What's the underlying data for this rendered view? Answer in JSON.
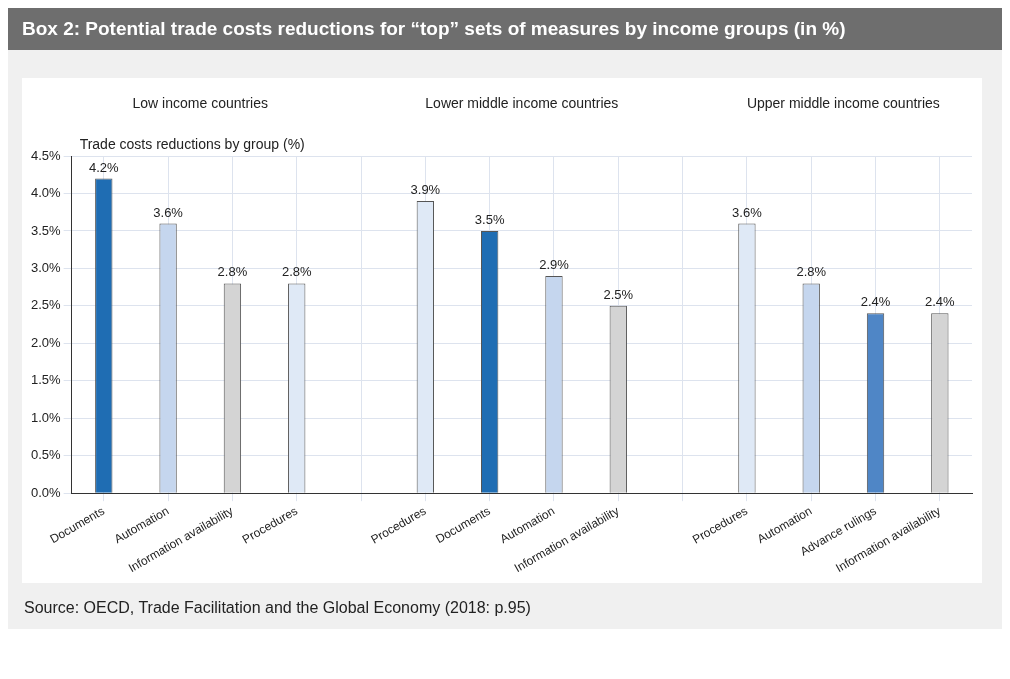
{
  "chart_data": {
    "type": "bar",
    "title": "Box 2: Potential trade costs reductions for “top” sets of measures by income groups (in %)",
    "ylabel": "Trade costs reductions by group (%)",
    "categories": [
      "Documents",
      "Automation",
      "Information availability",
      "Procedures",
      null,
      "Procedures",
      "Documents",
      "Automation",
      "Information availability",
      null,
      "Procedures",
      "Automation",
      "Advance rulings",
      "Information availability"
    ],
    "values": [
      4.2,
      3.6,
      2.8,
      2.8,
      null,
      3.9,
      3.5,
      2.9,
      2.5,
      null,
      3.6,
      2.8,
      2.4,
      2.4
    ],
    "value_labels": [
      "4.2%",
      "3.6%",
      "2.8%",
      "2.8%",
      null,
      "3.9%",
      "3.5%",
      "2.9%",
      "2.5%",
      null,
      "3.6%",
      "2.8%",
      "2.4%",
      "2.4%"
    ],
    "colors": [
      "#1f6db3",
      "#c5d6ee",
      "#d4d4d4",
      "#dfe9f6",
      null,
      "#dfe9f6",
      "#1f6db3",
      "#c5d6ee",
      "#d4d4d4",
      null,
      "#dfe9f6",
      "#c5d6ee",
      "#4f86c6",
      "#d4d4d4"
    ],
    "ylim": [
      0,
      4.5
    ],
    "yticks": [
      {
        "value": 0,
        "label": "0.0%"
      },
      {
        "value": 0.5,
        "label": "0.5%"
      },
      {
        "value": 1,
        "label": "1.0%"
      },
      {
        "value": 1.5,
        "label": "1.5%"
      },
      {
        "value": 2,
        "label": "2.0%"
      },
      {
        "value": 2.5,
        "label": "2.5%"
      },
      {
        "value": 3,
        "label": "3.0%"
      },
      {
        "value": 3.5,
        "label": "3.5%"
      },
      {
        "value": 4,
        "label": "4.0%"
      },
      {
        "value": 4.5,
        "label": "4.5%"
      }
    ],
    "grid": true,
    "legend": false,
    "annotations": [
      "Low income countries",
      "Lower middle income countries",
      "Upper middle income countries",
      "Source: OECD, Trade Facilitation and the Global Economy (2018: p.95)"
    ]
  }
}
